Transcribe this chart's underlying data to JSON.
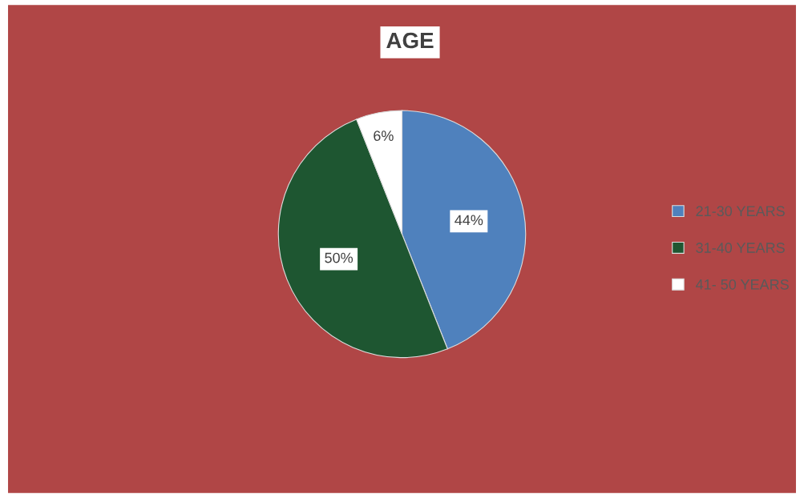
{
  "chart_data": {
    "type": "pie",
    "title": "AGE",
    "categories": [
      "21-30 YEARS",
      "31-40 YEARS",
      "41- 50 YEARS"
    ],
    "values": [
      44,
      50,
      6
    ],
    "colors": [
      "#4f81bd",
      "#1e5631",
      "#ffffff"
    ],
    "value_labels": [
      "44%",
      "50%",
      "6%"
    ],
    "legend": "right"
  }
}
